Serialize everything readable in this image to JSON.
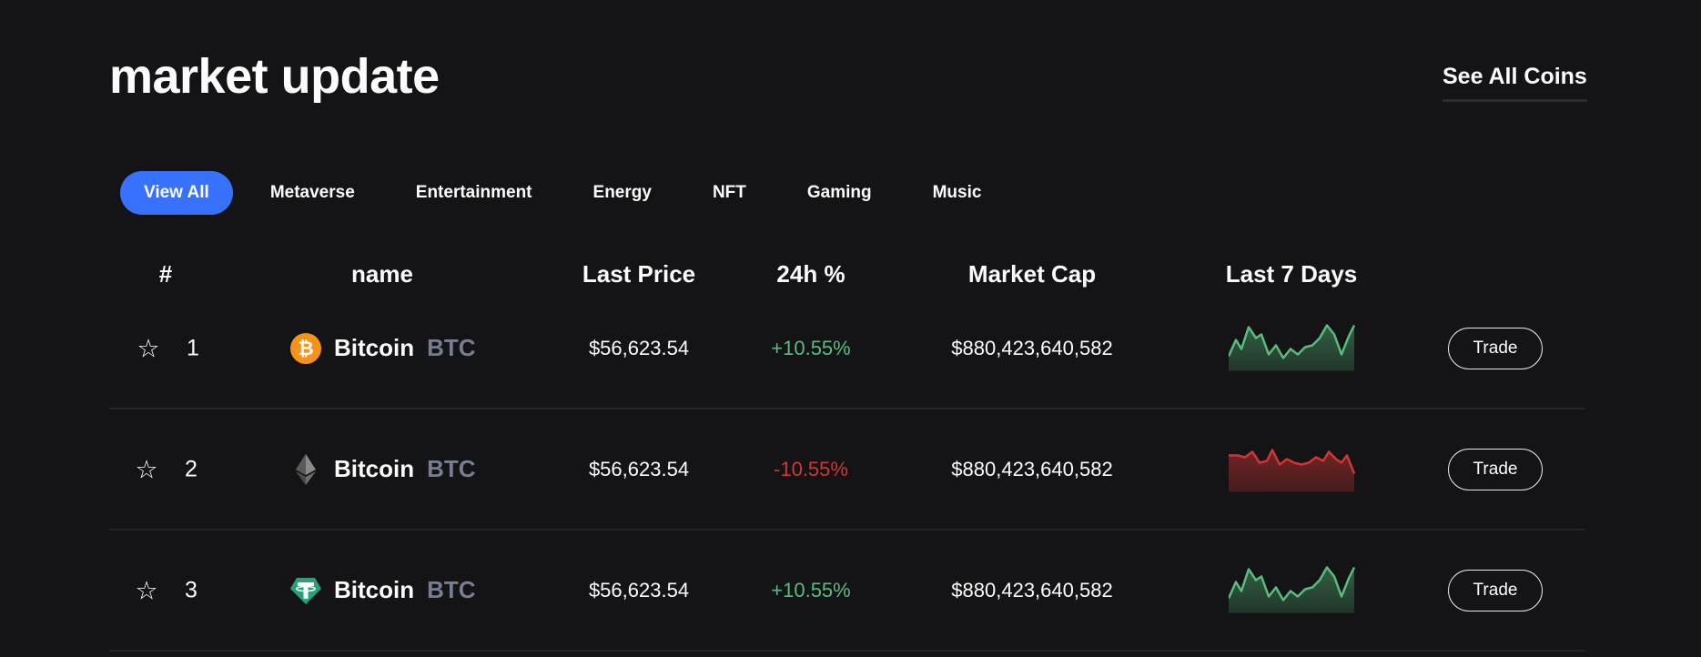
{
  "header": {
    "title": "market update",
    "see_all": "See All Coins"
  },
  "tabs": [
    {
      "label": "View All",
      "active": true
    },
    {
      "label": "Metaverse"
    },
    {
      "label": "Entertainment"
    },
    {
      "label": "Energy"
    },
    {
      "label": "NFT"
    },
    {
      "label": "Gaming"
    },
    {
      "label": "Music"
    }
  ],
  "columns": {
    "rank": "#",
    "name": "name",
    "last_price": "Last Price",
    "change": "24h %",
    "market_cap": "Market Cap",
    "last7": "Last 7 Days"
  },
  "colors": {
    "accent": "#3772ff",
    "up": "#58bd7d",
    "down": "#d33535",
    "background": "#141416"
  },
  "rows": [
    {
      "rank": "1",
      "icon": "bitcoin-icon",
      "name": "Bitcoin",
      "symbol": "BTC",
      "price": "$56,623.54",
      "change": "+10.55%",
      "trend": "up",
      "market_cap": "$880,423,640,582",
      "trade": "Trade"
    },
    {
      "rank": "2",
      "icon": "ethereum-icon",
      "name": "Bitcoin",
      "symbol": "BTC",
      "price": "$56,623.54",
      "change": "-10.55%",
      "trend": "down",
      "market_cap": "$880,423,640,582",
      "trade": "Trade"
    },
    {
      "rank": "3",
      "icon": "tether-icon",
      "name": "Bitcoin",
      "symbol": "BTC",
      "price": "$56,623.54",
      "change": "+10.55%",
      "trend": "up",
      "market_cap": "$880,423,640,582",
      "trade": "Trade"
    }
  ]
}
